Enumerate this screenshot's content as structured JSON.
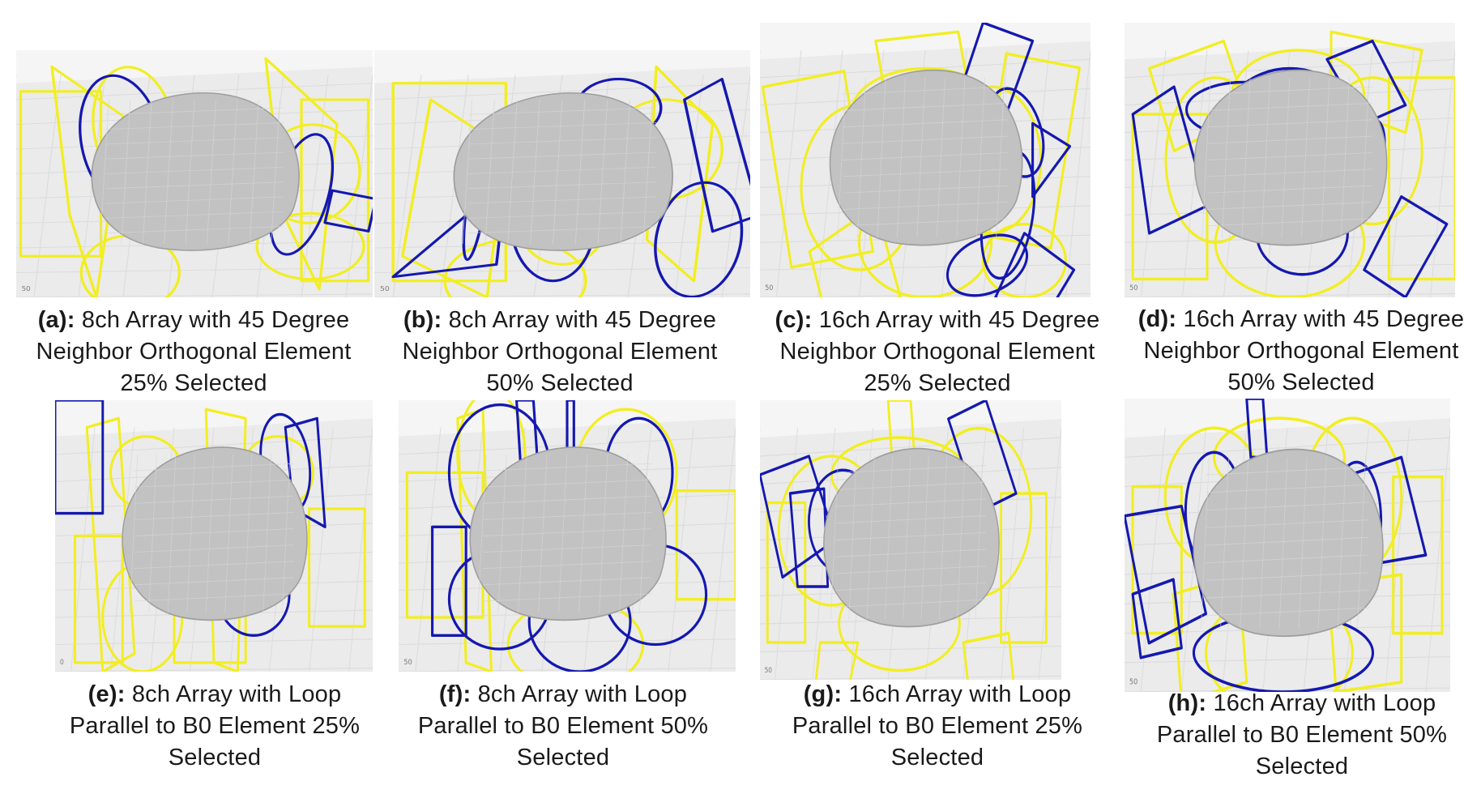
{
  "panels": [
    {
      "id": "a",
      "tag": "(a):",
      "lines": [
        "8ch Array with 45 Degree",
        "Neighbor Orthogonal Element",
        "25% Selected"
      ],
      "coil": "45",
      "tick": "50"
    },
    {
      "id": "b",
      "tag": "(b):",
      "lines": [
        "8ch Array with 45 Degree",
        "Neighbor Orthogonal Element",
        "50% Selected"
      ],
      "coil": "45",
      "tick": "50"
    },
    {
      "id": "c",
      "tag": "(c):",
      "lines": [
        "16ch Array with 45 Degree",
        "Neighbor Orthogonal Element",
        "25% Selected"
      ],
      "coil": "45",
      "tick": "50"
    },
    {
      "id": "d",
      "tag": "(d):",
      "lines": [
        "16ch Array with 45 Degree",
        "Neighbor Orthogonal Element",
        "50% Selected"
      ],
      "coil": "45",
      "tick": "50"
    },
    {
      "id": "e",
      "tag": "(e):",
      "lines": [
        "8ch Array with Loop",
        "Parallel to B0 Element 25%",
        "Selected"
      ],
      "coil": "parallel",
      "tick": "0"
    },
    {
      "id": "f",
      "tag": "(f):",
      "lines": [
        "8ch Array with Loop",
        "Parallel to B0 Element 50%",
        "Selected"
      ],
      "coil": "parallel",
      "tick": "50"
    },
    {
      "id": "g",
      "tag": "(g):",
      "lines": [
        "16ch Array with Loop",
        "Parallel to B0 Element 25%",
        "Selected"
      ],
      "coil": "parallel",
      "tick": "50"
    },
    {
      "id": "h",
      "tag": "(h):",
      "lines": [
        "16ch Array with Loop",
        "Parallel to B0 Element 50%",
        "Selected"
      ],
      "coil": "parallel",
      "tick": "50"
    }
  ],
  "colors": {
    "selected_coil": "#1418b0",
    "unselected_coil": "#f2ee21",
    "head_model": "#c2c2c2"
  }
}
